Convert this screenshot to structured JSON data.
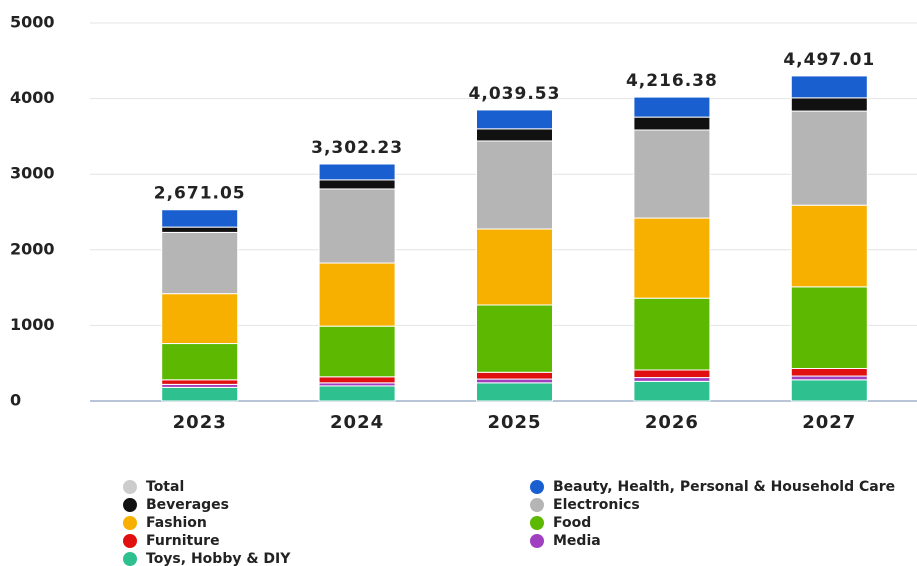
{
  "chart_data": {
    "type": "stacked_bar",
    "categories": [
      "2023",
      "2024",
      "2025",
      "2026",
      "2027"
    ],
    "series": [
      {
        "name": "Total",
        "color": "#c8c8c8",
        "hidden": true,
        "values": [
          2671.05,
          3302.23,
          4039.53,
          4216.38,
          4497.01
        ],
        "value_labels": [
          "2,671.05",
          "3,302.23",
          "4,039.53",
          "4,216.38",
          "4,497.01"
        ]
      },
      {
        "name": "Beauty, Health, Personal & Household Care",
        "color": "#1a5fd0",
        "values": [
          230,
          210,
          250,
          265,
          290
        ]
      },
      {
        "name": "Beverages",
        "color": "#111111",
        "values": [
          70,
          120,
          160,
          170,
          175
        ]
      },
      {
        "name": "Electronics",
        "color": "#b5b5b5",
        "values": [
          810,
          980,
          1165,
          1165,
          1245
        ]
      },
      {
        "name": "Fashion",
        "color": "#f7b000",
        "values": [
          660,
          835,
          1005,
          1060,
          1080
        ]
      },
      {
        "name": "Food",
        "color": "#5cb800",
        "values": [
          480,
          670,
          890,
          950,
          1080
        ]
      },
      {
        "name": "Furniture",
        "color": "#e01010",
        "values": [
          60,
          80,
          90,
          100,
          100
        ]
      },
      {
        "name": "Media",
        "color": "#a040c0",
        "values": [
          40,
          40,
          50,
          50,
          50
        ]
      },
      {
        "name": "Toys, Hobby & DIY",
        "color": "#2fc08f",
        "values": [
          180,
          200,
          240,
          260,
          280
        ]
      }
    ],
    "ylim": [
      0,
      5000
    ],
    "yticks": [
      0,
      1000,
      2000,
      3000,
      4000,
      5000
    ],
    "grid": true
  }
}
